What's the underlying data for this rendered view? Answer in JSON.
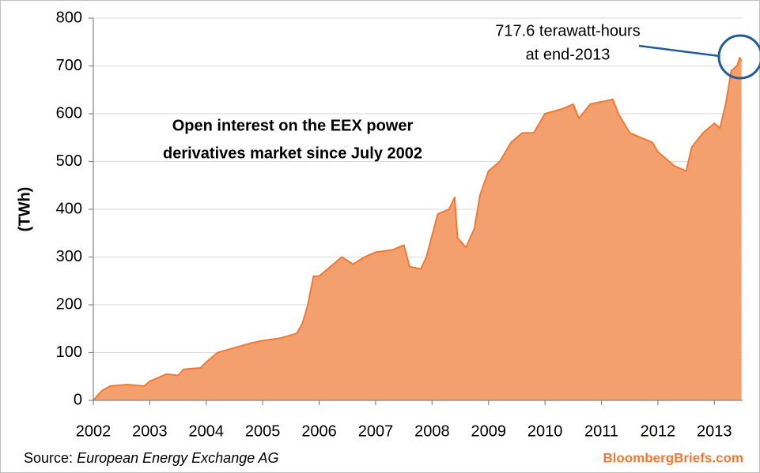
{
  "chart_data": {
    "type": "area",
    "title": [
      "Open interest on the EEX power",
      "derivatives market since July 2002"
    ],
    "y_label": "(TWh)",
    "annotation": [
      "717.6 terawatt-hours",
      "at end-2013"
    ],
    "source": {
      "label": "Source:",
      "text": "European Energy Exchange AG"
    },
    "brand": "BloombergBriefs.com",
    "x": [
      2002.0,
      2002.15,
      2002.3,
      2002.6,
      2002.9,
      2003.0,
      2003.3,
      2003.5,
      2003.6,
      2003.9,
      2004.0,
      2004.2,
      2004.5,
      2004.8,
      2005.0,
      2005.3,
      2005.6,
      2005.7,
      2005.8,
      2005.9,
      2006.0,
      2006.3,
      2006.4,
      2006.6,
      2006.8,
      2007.0,
      2007.3,
      2007.5,
      2007.6,
      2007.8,
      2007.9,
      2008.0,
      2008.1,
      2008.3,
      2008.4,
      2008.45,
      2008.6,
      2008.75,
      2008.85,
      2009.0,
      2009.2,
      2009.4,
      2009.6,
      2009.8,
      2010.0,
      2010.3,
      2010.5,
      2010.6,
      2010.8,
      2011.0,
      2011.2,
      2011.3,
      2011.5,
      2011.7,
      2011.9,
      2012.0,
      2012.2,
      2012.3,
      2012.5,
      2012.6,
      2012.8,
      2013.0,
      2013.1,
      2013.2,
      2013.3,
      2013.4,
      2013.45,
      2013.48
    ],
    "values": [
      0,
      20,
      30,
      33,
      30,
      40,
      55,
      52,
      65,
      68,
      80,
      100,
      110,
      120,
      125,
      130,
      140,
      160,
      200,
      260,
      260,
      290,
      300,
      285,
      300,
      310,
      315,
      325,
      280,
      275,
      300,
      345,
      390,
      400,
      425,
      340,
      320,
      360,
      430,
      480,
      500,
      540,
      560,
      560,
      600,
      610,
      620,
      590,
      620,
      625,
      630,
      600,
      560,
      550,
      540,
      520,
      500,
      490,
      480,
      530,
      560,
      580,
      570,
      620,
      690,
      700,
      717.6,
      710
    ],
    "color": "#f4a06e",
    "line_color": "#ef7a35",
    "xlim": [
      2002,
      2013.5
    ],
    "xticks": [
      2002,
      2003,
      2004,
      2005,
      2006,
      2007,
      2008,
      2009,
      2010,
      2011,
      2012,
      2013
    ],
    "ylim": [
      0,
      800
    ],
    "yticks": [
      0,
      100,
      200,
      300,
      400,
      500,
      600,
      700,
      800
    ],
    "grid": true
  }
}
